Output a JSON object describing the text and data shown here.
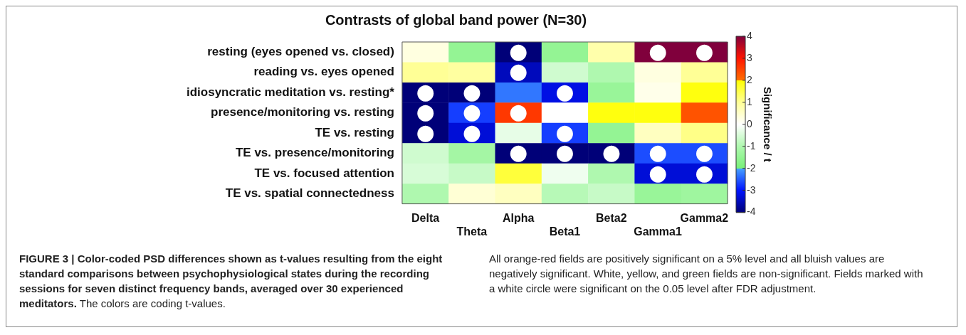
{
  "chart_data": {
    "type": "heatmap",
    "title": "Contrasts of global band power (N=30)",
    "categories": [
      "Delta",
      "Theta",
      "Alpha",
      "Beta1",
      "Beta2",
      "Gamma1",
      "Gamma2"
    ],
    "y_categories": [
      "resting (eyes opened vs. closed)",
      "reading vs. eyes opened",
      "idiosyncratic meditation vs. resting*",
      "presence/monitoring vs. resting",
      "TE vs. resting",
      "TE vs. presence/monitoring",
      "TE vs. focused attention",
      "TE vs. spatial connectedness"
    ],
    "cells": [
      [
        0.3,
        -1.5,
        -4,
        -1.5,
        0.8,
        4,
        4
      ],
      [
        1.0,
        0.9,
        -3.5,
        -0.6,
        -1.0,
        0.3,
        1.0
      ],
      [
        -4,
        -4,
        -2.3,
        -3.2,
        -1.4,
        0.2,
        1.9
      ],
      [
        -4,
        -2.7,
        2.6,
        0,
        1.9,
        1.9,
        2.3
      ],
      [
        -4,
        -3.3,
        -0.3,
        -2.7,
        -1.5,
        0.6,
        1.1
      ],
      [
        -0.6,
        -1.2,
        -4,
        -4,
        -4,
        -2.6,
        -2.6
      ],
      [
        -0.5,
        -0.7,
        1.6,
        -0.2,
        -1.0,
        -3.3,
        -3.3
      ],
      [
        -1.0,
        0.4,
        0.6,
        -0.9,
        -0.7,
        -1.4,
        -1.3
      ]
    ],
    "cell_labels": [
      [
        null,
        null,
        "●",
        null,
        null,
        "●",
        "●"
      ],
      [
        null,
        null,
        "●",
        null,
        null,
        null,
        null
      ],
      [
        "●",
        "●",
        null,
        "●",
        null,
        null,
        null
      ],
      [
        "●",
        "●",
        "●",
        null,
        null,
        null,
        null
      ],
      [
        "●",
        "●",
        null,
        "●",
        null,
        null,
        null
      ],
      [
        null,
        null,
        "●",
        "●",
        "●",
        "●",
        "●"
      ],
      [
        null,
        null,
        null,
        null,
        null,
        "●",
        "●"
      ],
      [
        null,
        null,
        null,
        null,
        null,
        null,
        null
      ]
    ],
    "clim": [
      -4,
      4
    ],
    "cticks": [
      -4,
      -3,
      -2,
      -1,
      0,
      1,
      2,
      3,
      4
    ],
    "clabel": "Significance / t",
    "annotations": [
      "FIGURE 3 | Color-coded PSD differences shown as t-values resulting from the eight standard comparisons between psychophysiological states during the recording sessions for seven distinct frequency bands, averaged over 30 experienced meditators.",
      "The colors are coding t-values.",
      "All orange-red fields are positively significant on a 5% level and all bluish values are negatively significant. White, yellow, and green fields are non-significant. Fields marked with a white circle were significant on the 0.05 level after FDR adjustment."
    ]
  }
}
